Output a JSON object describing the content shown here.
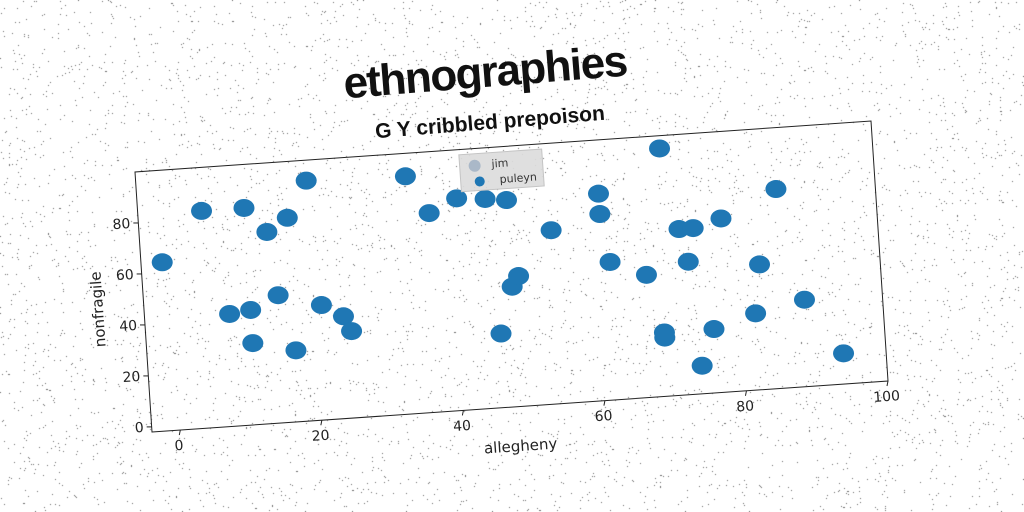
{
  "chart_data": {
    "type": "scatter",
    "title": "ethnographies",
    "subtitle": "G Y cribbled prepoison",
    "xlabel": "allegheny",
    "ylabel": "nonfragile",
    "xlim": [
      -4,
      100
    ],
    "ylim": [
      -2,
      100
    ],
    "xticks": [
      "0",
      "20",
      "40",
      "60",
      "80",
      "100"
    ],
    "yticks": [
      "0",
      "20",
      "40",
      "60",
      "80"
    ],
    "grid": false,
    "legend_position": "top-center",
    "series": [
      {
        "name": "jim",
        "color": "#aab8c8",
        "x": [],
        "y": []
      },
      {
        "name": "puleyn",
        "color": "#1f77b4",
        "x": [
          -1,
          5,
          11,
          14,
          17,
          20,
          8,
          11,
          11,
          15,
          17,
          21,
          24,
          25,
          34,
          37,
          41,
          45,
          48,
          46,
          48,
          49,
          54,
          61,
          62,
          61,
          67,
          69,
          69,
          70,
          72,
          73,
          74,
          74,
          76,
          78,
          82,
          83,
          86,
          89,
          94
        ],
        "y": [
          64,
          83,
          83,
          73,
          78,
          92,
          42,
          43,
          30,
          48,
          26,
          43,
          38,
          32,
          91,
          76,
          81,
          80,
          79,
          27,
          45,
          49,
          66,
          71,
          52,
          79,
          46,
          21,
          23,
          95,
          63,
          50,
          63,
          9,
          23,
          66,
          28,
          47,
          76,
          32,
          10
        ]
      }
    ]
  }
}
